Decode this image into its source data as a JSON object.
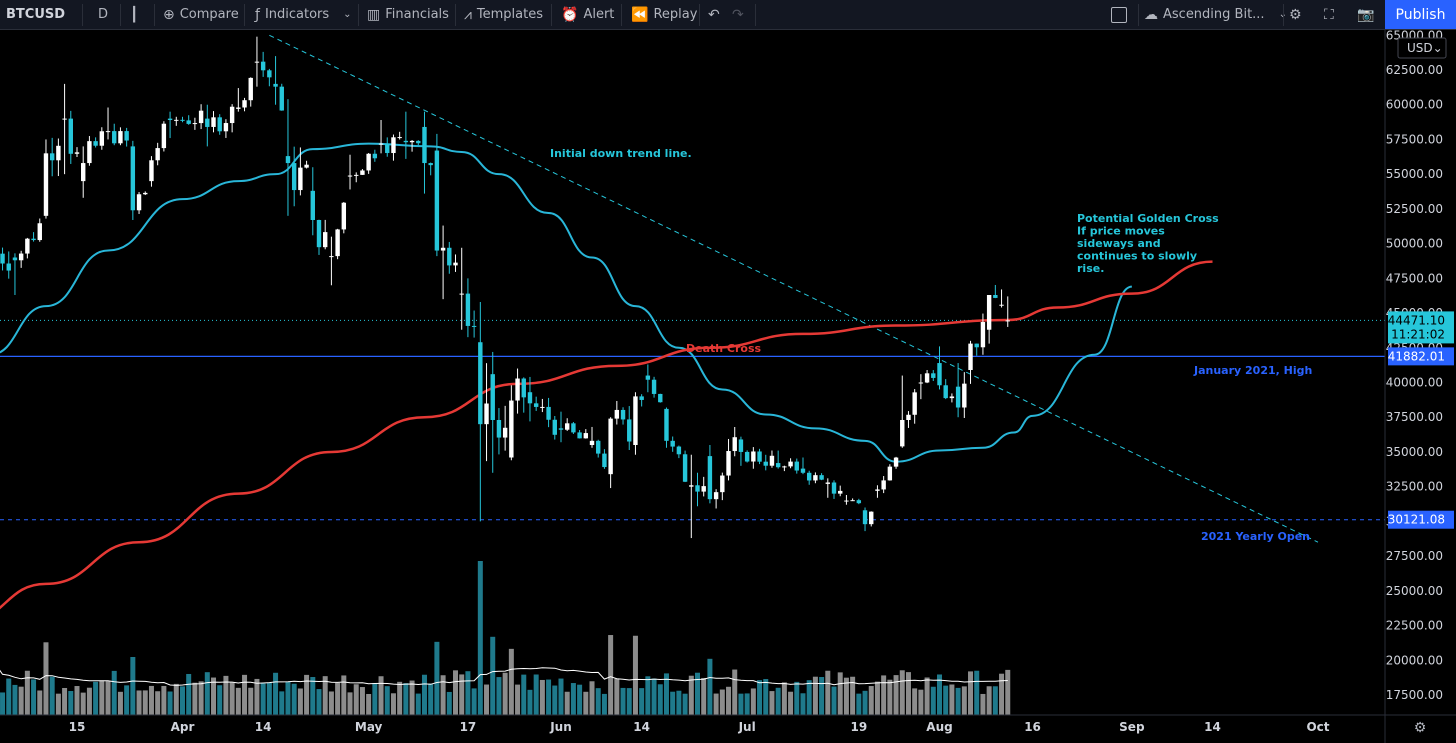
{
  "toolbar": {
    "symbol": "BTCUSD",
    "interval": "D",
    "compare": "Compare",
    "indicators": "Indicators",
    "financials": "Financials",
    "templates": "Templates",
    "alert": "Alert",
    "replay": "Replay",
    "layout_name": "Ascending Bit...",
    "publish": "Publish"
  },
  "colors": {
    "background": "#000000",
    "candle_up": "#ffffff",
    "candle_down": "#26c6da",
    "ma_fast": "#29b6d8",
    "ma_slow": "#e53935",
    "hline": "#2962ff",
    "trendline": "#26c6da",
    "volume_up": "#8c8c8c",
    "volume_down": "#1f7a8c"
  },
  "chart_data": {
    "type": "candlestick",
    "symbol": "BTCUSD",
    "interval": "D",
    "currency": "USD",
    "ylim": [
      16500,
      65500
    ],
    "y_ticks": [
      17500,
      20000,
      22500,
      25000,
      27500,
      30000,
      32500,
      35000,
      37500,
      40000,
      42500,
      45000,
      47500,
      50000,
      52500,
      55000,
      57500,
      60000,
      62500,
      65000
    ],
    "y_tick_labels": [
      "17500.00",
      "20000.00",
      "22500.00",
      "25000.00",
      "27500.00",
      "30000.00",
      "32500.00",
      "35000.00",
      "37500.00",
      "40000.00",
      "42500.00",
      "45000.00",
      "47500.00",
      "50000.00",
      "52500.00",
      "55000.00",
      "57500.00",
      "60000.00",
      "62500.00",
      "65000.00"
    ],
    "x_tick_labels": [
      "15",
      "Apr",
      "14",
      "May",
      "17",
      "Jun",
      "14",
      "Jul",
      "19",
      "Aug",
      "16",
      "Sep",
      "14",
      "Oct"
    ],
    "x_tick_dates": [
      "2021-03-15",
      "2021-04-01",
      "2021-04-14",
      "2021-05-01",
      "2021-05-17",
      "2021-06-01",
      "2021-06-14",
      "2021-07-01",
      "2021-07-19",
      "2021-08-01",
      "2021-08-16",
      "2021-09-01",
      "2021-09-14",
      "2021-10-01"
    ],
    "x_range": [
      "2021-03-01",
      "2021-10-10"
    ],
    "ohlc_anchors": [
      [
        "2021-03-01",
        45000,
        49500,
        44900,
        49400
      ],
      [
        "2021-03-05",
        49000,
        49300,
        46300,
        48800
      ],
      [
        "2021-03-10",
        52000,
        57500,
        51800,
        56500
      ],
      [
        "2021-03-13",
        59000,
        61500,
        55000,
        59000
      ],
      [
        "2021-03-16",
        54500,
        57000,
        53300,
        55800
      ],
      [
        "2021-03-20",
        58100,
        59800,
        57500,
        58100
      ],
      [
        "2021-03-24",
        57000,
        57400,
        51700,
        52400
      ],
      [
        "2021-03-27",
        54500,
        56300,
        54100,
        56000
      ],
      [
        "2021-03-30",
        59000,
        59500,
        57600,
        58900
      ],
      [
        "2021-04-05",
        59000,
        60000,
        57000,
        58400
      ],
      [
        "2021-04-10",
        59700,
        61200,
        59500,
        59800
      ],
      [
        "2021-04-13",
        63100,
        64900,
        61300,
        63100
      ],
      [
        "2021-04-16",
        61500,
        63500,
        60000,
        61300
      ],
      [
        "2021-04-18",
        56300,
        60400,
        52000,
        55800
      ],
      [
        "2021-04-22",
        53800,
        55500,
        50600,
        51700
      ],
      [
        "2021-04-25",
        49100,
        50500,
        47000,
        49100
      ],
      [
        "2021-04-28",
        54900,
        56400,
        53900,
        54900
      ],
      [
        "2021-05-03",
        57200,
        58900,
        56500,
        57200
      ],
      [
        "2021-05-07",
        57400,
        59500,
        56100,
        57300
      ],
      [
        "2021-05-10",
        58400,
        59500,
        53600,
        55800
      ],
      [
        "2021-05-12",
        56700,
        57900,
        49100,
        49500
      ],
      [
        "2021-05-13",
        49500,
        51300,
        46000,
        49700
      ],
      [
        "2021-05-16",
        46400,
        49700,
        43800,
        46400
      ],
      [
        "2021-05-19",
        42900,
        45800,
        30000,
        37000
      ],
      [
        "2021-05-21",
        40600,
        42200,
        33500,
        37300
      ],
      [
        "2021-05-24",
        34600,
        39800,
        34400,
        38700
      ],
      [
        "2021-05-27",
        39300,
        40400,
        37200,
        38500
      ],
      [
        "2021-06-01",
        36700,
        37900,
        35700,
        36600
      ],
      [
        "2021-06-06",
        35500,
        36800,
        35300,
        35800
      ],
      [
        "2021-06-09",
        33400,
        37500,
        32400,
        37400
      ],
      [
        "2021-06-13",
        35500,
        39300,
        34800,
        39000
      ],
      [
        "2021-06-15",
        40500,
        41300,
        39300,
        40200
      ],
      [
        "2021-06-18",
        38100,
        38200,
        35300,
        35800
      ],
      [
        "2021-06-22",
        32500,
        34800,
        28800,
        32600
      ],
      [
        "2021-06-25",
        34700,
        35500,
        31300,
        31600
      ],
      [
        "2021-06-30",
        35900,
        36100,
        34000,
        35000
      ],
      [
        "2021-07-06",
        34200,
        35100,
        33800,
        33900
      ],
      [
        "2021-07-10",
        33800,
        34600,
        33400,
        33500
      ],
      [
        "2021-07-14",
        32700,
        33100,
        31700,
        32800
      ],
      [
        "2021-07-17",
        31500,
        31900,
        31200,
        31500
      ],
      [
        "2021-07-20",
        30800,
        31000,
        29300,
        29800
      ],
      [
        "2021-07-22",
        32200,
        32600,
        31700,
        32300
      ],
      [
        "2021-07-26",
        35400,
        40500,
        35300,
        37300
      ],
      [
        "2021-07-29",
        40000,
        40600,
        38800,
        40000
      ],
      [
        "2021-08-01",
        41400,
        42600,
        39500,
        39800
      ],
      [
        "2021-08-04",
        39700,
        41400,
        37500,
        38200
      ],
      [
        "2021-08-06",
        40900,
        43000,
        39900,
        42800
      ],
      [
        "2021-08-09",
        43800,
        46300,
        42800,
        46300
      ],
      [
        "2021-08-11",
        45600,
        46700,
        45400,
        45600
      ],
      [
        "2021-08-12",
        44400,
        46200,
        44000,
        44471
      ]
    ],
    "last_price": 44471.1,
    "last_price_label": "44471.10",
    "countdown": "11:21:02",
    "series": [
      {
        "name": "Fast MA",
        "color": "#29b6d8",
        "points": [
          [
            "2021-03-01",
            42000
          ],
          [
            "2021-03-10",
            45500
          ],
          [
            "2021-03-20",
            49500
          ],
          [
            "2021-04-01",
            53200
          ],
          [
            "2021-04-10",
            54500
          ],
          [
            "2021-04-16",
            55000
          ],
          [
            "2021-04-22",
            56800
          ],
          [
            "2021-05-01",
            57200
          ],
          [
            "2021-05-11",
            57000
          ],
          [
            "2021-05-16",
            56600
          ],
          [
            "2021-05-22",
            55000
          ],
          [
            "2021-05-30",
            52200
          ],
          [
            "2021-06-06",
            49000
          ],
          [
            "2021-06-13",
            45500
          ],
          [
            "2021-06-20",
            42500
          ],
          [
            "2021-06-27",
            39500
          ],
          [
            "2021-07-04",
            37700
          ],
          [
            "2021-07-12",
            36700
          ],
          [
            "2021-07-20",
            35800
          ],
          [
            "2021-07-25",
            34300
          ],
          [
            "2021-08-01",
            35100
          ],
          [
            "2021-08-08",
            35300
          ],
          [
            "2021-08-13",
            36400
          ],
          [
            "2021-08-16",
            37600
          ],
          [
            "2021-08-26",
            42000
          ],
          [
            "2021-09-01",
            46900
          ]
        ]
      },
      {
        "name": "Slow MA",
        "color": "#e53935",
        "points": [
          [
            "2021-02-25",
            22800
          ],
          [
            "2021-03-10",
            25500
          ],
          [
            "2021-03-25",
            28500
          ],
          [
            "2021-04-10",
            32000
          ],
          [
            "2021-04-25",
            35000
          ],
          [
            "2021-05-10",
            37500
          ],
          [
            "2021-05-25",
            39900
          ],
          [
            "2021-06-10",
            41200
          ],
          [
            "2021-06-25",
            42500
          ],
          [
            "2021-07-10",
            43500
          ],
          [
            "2021-07-25",
            44100
          ],
          [
            "2021-08-12",
            44500
          ],
          [
            "2021-08-20",
            45400
          ],
          [
            "2021-09-01",
            46400
          ],
          [
            "2021-09-14",
            48700
          ]
        ]
      }
    ],
    "trendline": [
      [
        "2021-04-15",
        65000
      ],
      [
        "2021-10-01",
        28500
      ]
    ],
    "hlines": [
      {
        "value": 41882.01,
        "label": "41882.01",
        "style": "solid"
      },
      {
        "value": 30121.08,
        "label": "30121.08",
        "style": "dashed"
      }
    ],
    "annotations": {
      "trend_line": "Initial down trend line.",
      "golden_cross": [
        "Potential Golden Cross",
        "If price moves",
        "sideways and",
        "continues to slowly",
        "rise."
      ],
      "death_cross": "Death Cross",
      "january_high": "January 2021, High",
      "yearly_open": "2021 Yearly Open"
    }
  }
}
